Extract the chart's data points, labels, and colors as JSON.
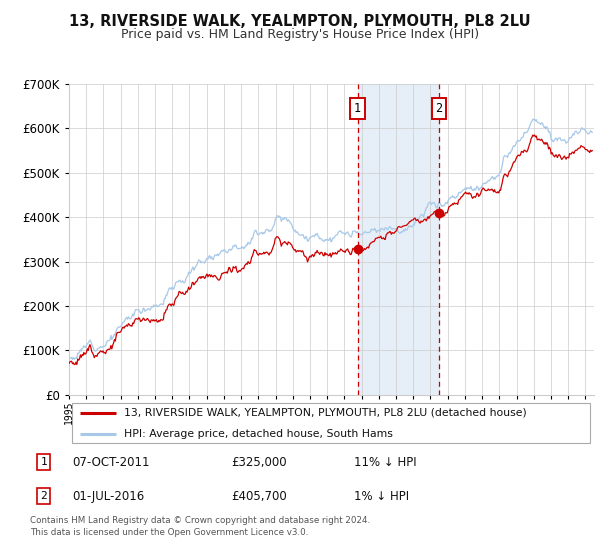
{
  "title": "13, RIVERSIDE WALK, YEALMPTON, PLYMOUTH, PL8 2LU",
  "subtitle": "Price paid vs. HM Land Registry's House Price Index (HPI)",
  "property_label": "13, RIVERSIDE WALK, YEALMPTON, PLYMOUTH, PL8 2LU (detached house)",
  "hpi_label": "HPI: Average price, detached house, South Hams",
  "transaction1": {
    "label": "1",
    "date": "07-OCT-2011",
    "price": 325000,
    "hpi_diff": "11% ↓ HPI"
  },
  "transaction2": {
    "label": "2",
    "date": "01-JUL-2016",
    "price": 405700,
    "hpi_diff": "1% ↓ HPI"
  },
  "t1_date_num": 2011.77,
  "t2_date_num": 2016.5,
  "hpi_color": "#a8c8e8",
  "price_color": "#cc0000",
  "dashed_color": "#cc0000",
  "shaded_color": "#dce9f5",
  "grid_color": "#cccccc",
  "ylim": [
    0,
    700000
  ],
  "xlim_start": 1995,
  "xlim_end": 2025.5,
  "footer": "Contains HM Land Registry data © Crown copyright and database right 2024.\nThis data is licensed under the Open Government Licence v3.0."
}
